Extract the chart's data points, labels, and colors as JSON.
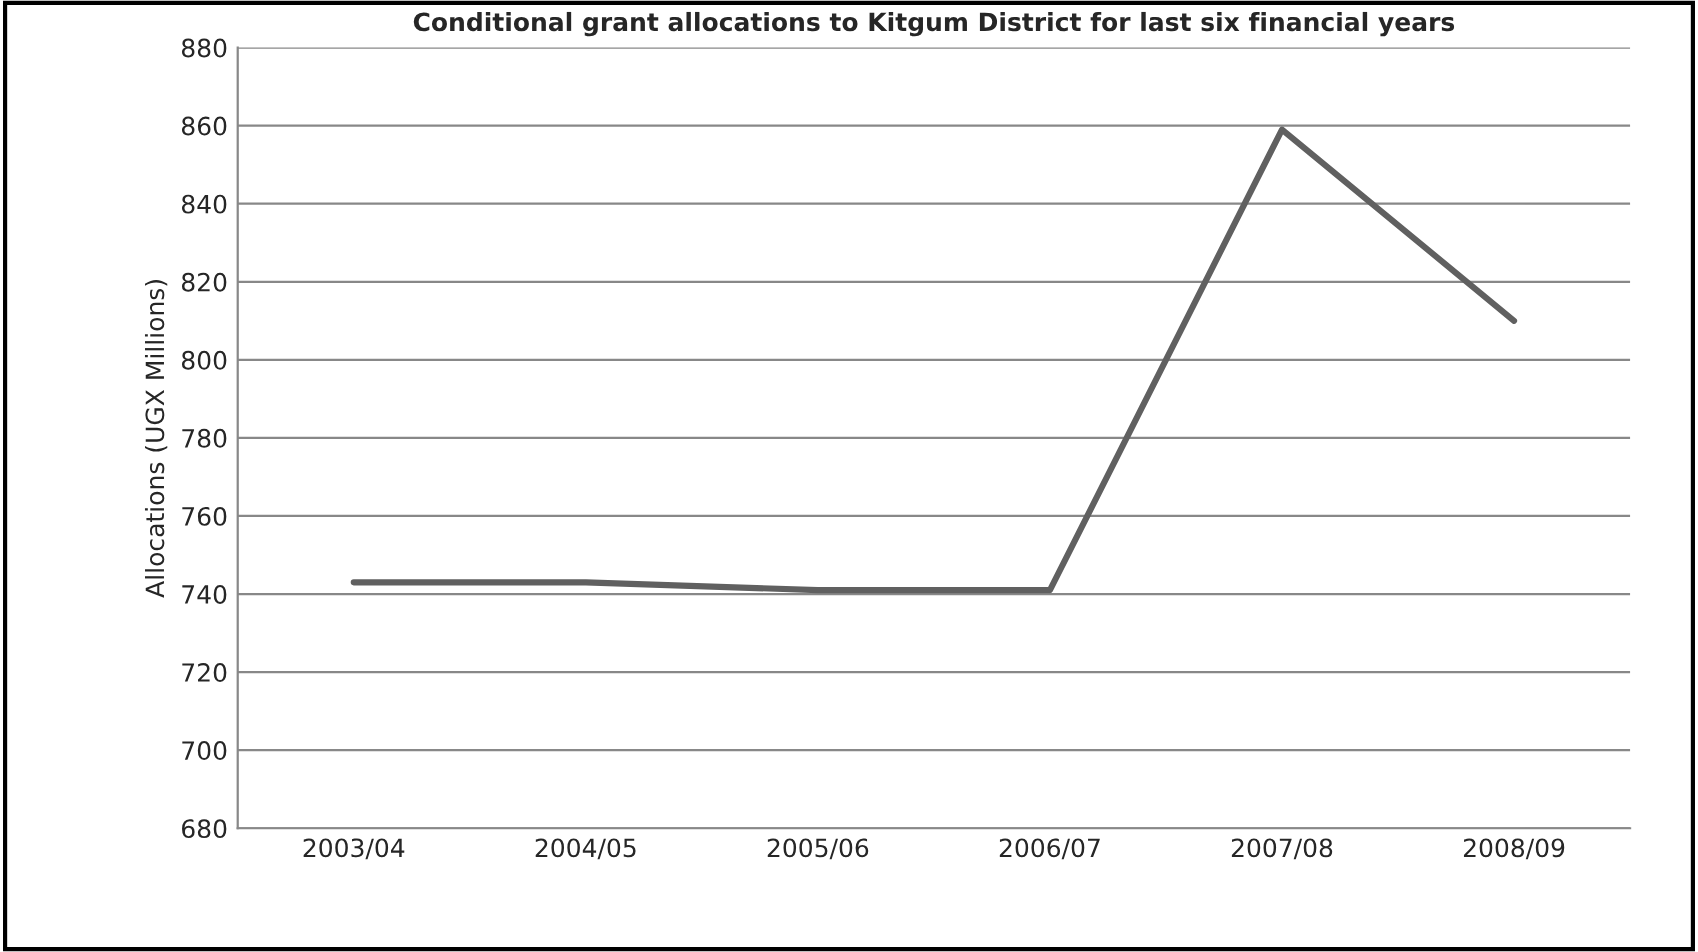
{
  "chart_data": {
    "type": "line",
    "title": "Conditional grant allocations to Kitgum District for last six financial years",
    "ylabel": "Allocations (UGX Millions)",
    "categories": [
      "2003/04",
      "2004/05",
      "2005/06",
      "2006/07",
      "2007/08",
      "2008/09"
    ],
    "series": [
      {
        "color": "#606060",
        "values": [
          743,
          743,
          741,
          741,
          859,
          810
        ]
      }
    ],
    "ylim": [
      680,
      880
    ],
    "yticks": [
      680,
      700,
      720,
      740,
      760,
      780,
      800,
      820,
      840,
      860,
      880
    ],
    "grid": "y",
    "marker": "none",
    "line_style": "solid"
  }
}
